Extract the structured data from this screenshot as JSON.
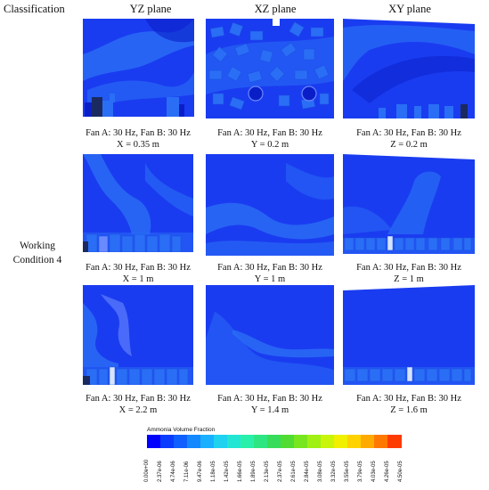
{
  "header": {
    "classification": "Classification",
    "col1": "YZ plane",
    "col2": "XZ plane",
    "col3": "XY plane"
  },
  "row_label": {
    "line1": "Working",
    "line2": "Condition 4"
  },
  "panels": [
    {
      "line1": "Fan A: 30 Hz, Fan B: 30 Hz",
      "line2": "X = 0.35 m"
    },
    {
      "line1": "Fan A: 30 Hz, Fan B: 30 Hz",
      "line2": "Y = 0.2 m"
    },
    {
      "line1": "Fan A: 30 Hz, Fan B: 30 Hz",
      "line2": "Z = 0.2 m"
    },
    {
      "line1": "Fan A: 30 Hz, Fan B: 30 Hz",
      "line2": "X = 1 m"
    },
    {
      "line1": "Fan A: 30 Hz, Fan B: 30 Hz",
      "line2": "Y = 1 m"
    },
    {
      "line1": "Fan A: 30 Hz, Fan B: 30 Hz",
      "line2": "Z = 1 m"
    },
    {
      "line1": "Fan A: 30 Hz, Fan B: 30 Hz",
      "line2": "X = 2.2 m"
    },
    {
      "line1": "Fan A: 30 Hz, Fan B: 30 Hz",
      "line2": "Y = 1.4 m"
    },
    {
      "line1": "Fan A: 30 Hz, Fan B: 30 Hz",
      "line2": "Z = 1.6 m"
    }
  ],
  "legend": {
    "title": "Ammonia Volume Fraction",
    "ticks": [
      "0.00e+00",
      "2.37e-06",
      "4.74e-06",
      "7.11e-06",
      "9.47e-06",
      "1.18e-05",
      "1.42e-05",
      "1.66e-05",
      "1.89e-05",
      "2.13e-05",
      "2.37e-05",
      "2.61e-05",
      "2.84e-05",
      "3.08e-05",
      "3.32e-05",
      "3.55e-05",
      "3.79e-05",
      "4.03e-05",
      "4.26e-05",
      "4.50e-05"
    ],
    "colors": [
      "#0000ff",
      "#0a3cff",
      "#0f60ff",
      "#1488ff",
      "#19b0ff",
      "#1ed2f0",
      "#23e6d2",
      "#28f0aa",
      "#2de682",
      "#37dc5a",
      "#50dc32",
      "#78e61e",
      "#a0f014",
      "#c8f50a",
      "#f0f000",
      "#ffd200",
      "#ffaa00",
      "#ff7800",
      "#ff3c00"
    ],
    "field_base": "#1a3cf0",
    "field_light": "#2a6ef5",
    "field_dark": "#0a1ec8"
  }
}
